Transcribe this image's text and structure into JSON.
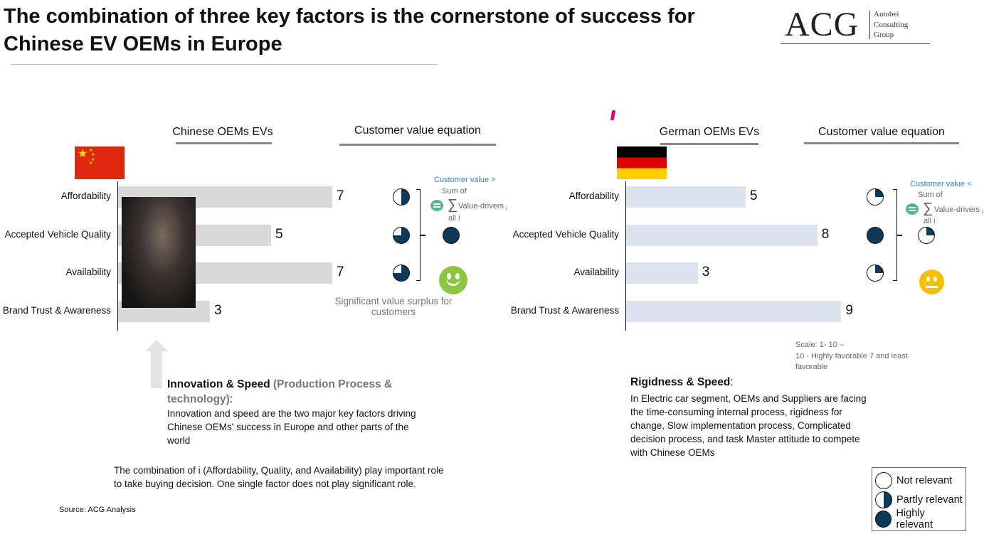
{
  "title": "The combination of three key factors is the cornerstone of success for Chinese EV OEMs in Europe",
  "logo": {
    "text": "ACG",
    "sub": [
      "Autobei",
      "Consulting",
      "Group"
    ]
  },
  "colors": {
    "navy": "#0d3a56",
    "china_bar": "#d9d9d9",
    "german_bar": "#dde3ee",
    "blue": "#2f7fc1",
    "green": "#8cc63f",
    "yellow": "#f6c000",
    "equals": "#4fb99a"
  },
  "chart_data": [
    {
      "type": "bar",
      "orientation": "horizontal",
      "title": "Chinese OEMs EVs",
      "categories": [
        "Affordability",
        "Accepted Vehicle Quality",
        "Availability",
        "Brand Trust & Awareness"
      ],
      "values": [
        7,
        5,
        7,
        3
      ],
      "xlim": [
        0,
        10
      ]
    },
    {
      "type": "bar",
      "orientation": "horizontal",
      "title": "German OEMs EVs",
      "categories": [
        "Affordability",
        "Accepted Vehicle Quality",
        "Availability",
        "Brand Trust & Awareness"
      ],
      "values": [
        5,
        8,
        3,
        9
      ],
      "xlim": [
        0,
        10
      ]
    }
  ],
  "china": {
    "equation_title": "Customer value equation",
    "relevance": [
      0.5,
      0.75,
      0.75
    ],
    "result": 1,
    "cv_label": "Customer value >",
    "sum_of": "Sum of",
    "sigma": "∑",
    "drivers": "Value-drivers",
    "sub_i": "i",
    "all_i": "all i",
    "smiley": "happy",
    "caption": "Significant value surplus for customers"
  },
  "germany": {
    "equation_title": "Customer value equation",
    "relevance": [
      0.25,
      1,
      0.25
    ],
    "result": 0.25,
    "cv_label": "Customer value <",
    "sum_of": "Sum of",
    "sigma": "∑",
    "drivers": "Value-drivers",
    "sub_i": "i",
    "all_i": "all i",
    "smiley": "neutral"
  },
  "innovation": {
    "title": "Innovation & Speed",
    "title_gray": "(Production Process & technology)",
    "colon": ":",
    "body": "Innovation and speed are the two major key factors driving Chinese OEMs' success in Europe and other parts of the world"
  },
  "combination": "The combination of i (Affordability, Quality, and Availability) play important role to take buying decision. One single factor does not play significant role.",
  "source": "Source: ACG Analysis",
  "scale": {
    "line1": "Scale: 1- 10 –",
    "line2": "10 - Highly favorable 7 and  least favorable"
  },
  "rigidness": {
    "title": "Rigidness & Speed",
    "colon": ":",
    "body": "In Electric car segment, OEMs and Suppliers are facing the time-consuming internal process, rigidness for change, Slow implementation process, Complicated decision process, and task Master attitude to compete with Chinese OEMs"
  },
  "legend": [
    {
      "label": "Not relevant",
      "fill": 0
    },
    {
      "label": "Partly relevant",
      "fill": 0.5
    },
    {
      "label": "Highly relevant",
      "fill": 1
    }
  ]
}
